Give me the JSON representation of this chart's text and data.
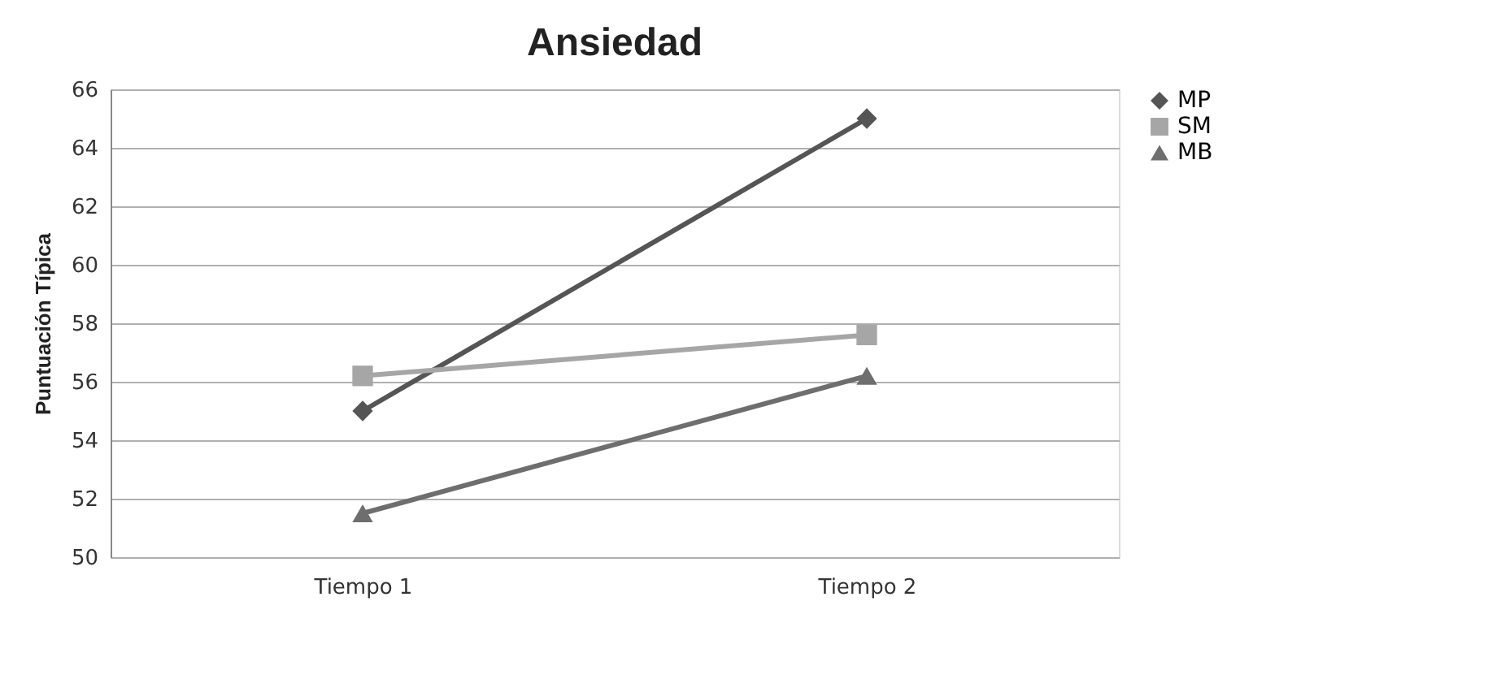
{
  "chart_data": {
    "type": "line",
    "title": "Ansiedad",
    "ylabel": "Puntuación Típica",
    "categories": [
      "Tiempo 1",
      "Tiempo 2"
    ],
    "series": [
      {
        "name": "MP",
        "color": "#555555",
        "marker": "diamond",
        "values": [
          55,
          65
        ]
      },
      {
        "name": "SM",
        "color": "#a6a6a6",
        "marker": "square",
        "values": [
          56.2,
          57.6
        ]
      },
      {
        "name": "MB",
        "color": "#6e6e6e",
        "marker": "triangle",
        "values": [
          51.5,
          56.2
        ]
      }
    ],
    "ylim": [
      50,
      66
    ],
    "yticks": [
      50,
      52,
      54,
      56,
      58,
      60,
      62,
      64,
      66
    ],
    "grid": "y",
    "legend": "right"
  }
}
